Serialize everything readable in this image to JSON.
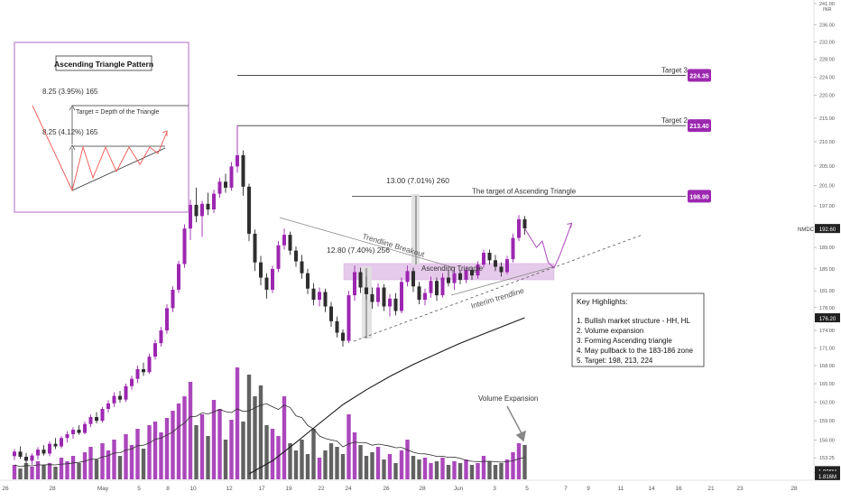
{
  "symbol": "NMDC",
  "currency": "INR",
  "colors": {
    "bull": "#9c27b0",
    "bear": "#2e2e2e",
    "target_label_bg": "#9c27b0",
    "zone": "#e1bee7",
    "price_tag": "#212121"
  },
  "price_tags": [
    {
      "value": "192.60",
      "role": "last-price",
      "price": 192.6
    },
    {
      "value": "176.20",
      "role": "moving-average",
      "price": 176.2
    },
    {
      "value": "1.906M",
      "role": "volume",
      "price": 151.3
    },
    {
      "value": "1.816M",
      "role": "volume-ma",
      "price": 150.55
    }
  ],
  "inset": {
    "title": "Ascending Triangle Pattern",
    "label_top": "8.25 (3.95%) 165",
    "label_mid": "8.25 (4.12%) 165",
    "target_note": "Target = Depth of the Triangle"
  },
  "targets": [
    {
      "name": "Target 3",
      "label": "224.35",
      "price": 224.35
    },
    {
      "name": "Target 2",
      "label": "213.40",
      "price": 213.4
    },
    {
      "name": "The target of Ascending Triangle",
      "label": "198.90",
      "price": 198.9
    }
  ],
  "annotations": {
    "measure_big": "13.00 (7.01%) 260",
    "measure_small": "12.80 (7.40%) 256",
    "trendline_breakout": "Trendline Breakout",
    "ascending_triangle": "Ascending Triangle",
    "interim_trendline": "Interim trendline",
    "volume_expansion": "Volume Expansion"
  },
  "key_highlights": {
    "title": "Key Highlights:",
    "items": [
      "1. Bullish market structure - HH, HL",
      "2. Volume expansion",
      "3. Forming Ascending triangle",
      "4. May pullback to the 183-186 zone",
      "5. Target: 198, 213, 224"
    ]
  },
  "chart_data": {
    "type": "candlestick",
    "y_axis": {
      "position": "right",
      "scale": "log",
      "ylim": [
        150.4,
        241.0
      ],
      "ticks": [
        241.0,
        236.0,
        232.0,
        228.0,
        224.0,
        220.0,
        215.0,
        210.0,
        205.0,
        201.0,
        197.0,
        193.0,
        189.0,
        185.0,
        181.0,
        178.0,
        174.0,
        171.0,
        168.0,
        165.0,
        162.0,
        159.0,
        156.0,
        153.25,
        151.0
      ]
    },
    "x_axis": {
      "labels": [
        "26",
        "28",
        "May",
        "5",
        "8",
        "10",
        "12",
        "17",
        "19",
        "22",
        "24",
        "26",
        "28",
        "Jun",
        "3",
        "5",
        "7",
        "9",
        "11",
        "14",
        "16",
        "21",
        "23",
        "28"
      ]
    },
    "grid": false,
    "candle_count": 88,
    "candles": [
      {
        "o": 153.5,
        "h": 154.6,
        "l": 152.9,
        "c": 154.2
      },
      {
        "o": 154.2,
        "h": 155.0,
        "l": 153.1,
        "c": 153.4
      },
      {
        "o": 153.4,
        "h": 154.0,
        "l": 152.4,
        "c": 152.8
      },
      {
        "o": 152.8,
        "h": 153.9,
        "l": 152.2,
        "c": 153.6
      },
      {
        "o": 153.6,
        "h": 154.9,
        "l": 153.0,
        "c": 154.5
      },
      {
        "o": 154.5,
        "h": 155.2,
        "l": 153.6,
        "c": 153.9
      },
      {
        "o": 153.9,
        "h": 155.8,
        "l": 153.5,
        "c": 155.4
      },
      {
        "o": 155.4,
        "h": 156.3,
        "l": 154.6,
        "c": 155.0
      },
      {
        "o": 155.0,
        "h": 156.6,
        "l": 154.7,
        "c": 156.3
      },
      {
        "o": 156.3,
        "h": 157.4,
        "l": 155.6,
        "c": 156.9
      },
      {
        "o": 156.9,
        "h": 158.0,
        "l": 156.2,
        "c": 157.6
      },
      {
        "o": 157.6,
        "h": 158.3,
        "l": 156.8,
        "c": 157.1
      },
      {
        "o": 157.1,
        "h": 158.9,
        "l": 156.9,
        "c": 158.5
      },
      {
        "o": 158.5,
        "h": 160.0,
        "l": 158.0,
        "c": 159.6
      },
      {
        "o": 159.6,
        "h": 160.4,
        "l": 158.6,
        "c": 159.0
      },
      {
        "o": 159.0,
        "h": 161.2,
        "l": 158.7,
        "c": 160.9
      },
      {
        "o": 160.9,
        "h": 162.3,
        "l": 160.3,
        "c": 161.8
      },
      {
        "o": 161.8,
        "h": 163.6,
        "l": 161.2,
        "c": 163.0
      },
      {
        "o": 163.0,
        "h": 163.8,
        "l": 161.9,
        "c": 162.4
      },
      {
        "o": 162.4,
        "h": 165.0,
        "l": 162.0,
        "c": 164.6
      },
      {
        "o": 164.6,
        "h": 166.3,
        "l": 164.0,
        "c": 165.8
      },
      {
        "o": 165.8,
        "h": 168.0,
        "l": 165.1,
        "c": 167.4
      },
      {
        "o": 167.4,
        "h": 168.5,
        "l": 166.3,
        "c": 166.9
      },
      {
        "o": 166.9,
        "h": 170.0,
        "l": 166.6,
        "c": 169.5
      },
      {
        "o": 169.5,
        "h": 172.4,
        "l": 169.0,
        "c": 171.8
      },
      {
        "o": 171.8,
        "h": 174.6,
        "l": 171.2,
        "c": 174.0
      },
      {
        "o": 174.0,
        "h": 178.6,
        "l": 173.4,
        "c": 177.9
      },
      {
        "o": 177.9,
        "h": 181.8,
        "l": 177.2,
        "c": 181.2
      },
      {
        "o": 181.2,
        "h": 186.5,
        "l": 180.6,
        "c": 185.9
      },
      {
        "o": 185.9,
        "h": 193.4,
        "l": 185.2,
        "c": 192.6
      },
      {
        "o": 192.6,
        "h": 198.2,
        "l": 190.4,
        "c": 197.2
      },
      {
        "o": 197.2,
        "h": 200.6,
        "l": 193.8,
        "c": 195.0
      },
      {
        "o": 195.0,
        "h": 198.0,
        "l": 191.0,
        "c": 197.4
      },
      {
        "o": 197.4,
        "h": 199.6,
        "l": 195.2,
        "c": 196.3
      },
      {
        "o": 196.3,
        "h": 200.2,
        "l": 195.6,
        "c": 199.4
      },
      {
        "o": 199.4,
        "h": 202.6,
        "l": 198.6,
        "c": 201.8
      },
      {
        "o": 201.8,
        "h": 203.4,
        "l": 199.6,
        "c": 200.6
      },
      {
        "o": 200.6,
        "h": 205.8,
        "l": 200.0,
        "c": 204.9
      },
      {
        "o": 204.9,
        "h": 213.4,
        "l": 203.6,
        "c": 207.2
      },
      {
        "o": 207.2,
        "h": 208.2,
        "l": 199.0,
        "c": 200.8
      },
      {
        "o": 200.8,
        "h": 201.4,
        "l": 190.2,
        "c": 191.6
      },
      {
        "o": 191.6,
        "h": 192.4,
        "l": 184.6,
        "c": 186.2
      },
      {
        "o": 186.2,
        "h": 187.4,
        "l": 182.0,
        "c": 183.4
      },
      {
        "o": 183.4,
        "h": 184.2,
        "l": 179.6,
        "c": 181.2
      },
      {
        "o": 181.2,
        "h": 185.6,
        "l": 180.6,
        "c": 185.0
      },
      {
        "o": 185.0,
        "h": 190.2,
        "l": 184.4,
        "c": 189.4
      },
      {
        "o": 189.4,
        "h": 192.6,
        "l": 188.6,
        "c": 191.4
      },
      {
        "o": 191.4,
        "h": 192.0,
        "l": 187.6,
        "c": 188.4
      },
      {
        "o": 188.4,
        "h": 189.2,
        "l": 185.4,
        "c": 186.4
      },
      {
        "o": 186.4,
        "h": 187.6,
        "l": 183.2,
        "c": 184.2
      },
      {
        "o": 184.2,
        "h": 185.0,
        "l": 180.4,
        "c": 181.4
      },
      {
        "o": 181.4,
        "h": 182.4,
        "l": 178.4,
        "c": 179.4
      },
      {
        "o": 179.4,
        "h": 181.6,
        "l": 178.2,
        "c": 180.8
      },
      {
        "o": 180.8,
        "h": 181.4,
        "l": 177.2,
        "c": 178.2
      },
      {
        "o": 178.2,
        "h": 179.0,
        "l": 174.6,
        "c": 175.6
      },
      {
        "o": 175.6,
        "h": 176.4,
        "l": 172.8,
        "c": 173.6
      },
      {
        "o": 173.6,
        "h": 174.2,
        "l": 171.2,
        "c": 172.2
      },
      {
        "o": 172.2,
        "h": 181.0,
        "l": 171.8,
        "c": 180.2
      },
      {
        "o": 180.2,
        "h": 185.6,
        "l": 179.2,
        "c": 184.4
      },
      {
        "o": 184.4,
        "h": 185.2,
        "l": 180.6,
        "c": 181.6
      },
      {
        "o": 181.6,
        "h": 183.6,
        "l": 179.4,
        "c": 180.4
      },
      {
        "o": 180.4,
        "h": 181.6,
        "l": 177.8,
        "c": 179.0
      },
      {
        "o": 179.0,
        "h": 182.4,
        "l": 178.2,
        "c": 181.6
      },
      {
        "o": 181.6,
        "h": 182.2,
        "l": 177.4,
        "c": 178.2
      },
      {
        "o": 178.2,
        "h": 180.4,
        "l": 176.4,
        "c": 179.6
      },
      {
        "o": 179.6,
        "h": 180.6,
        "l": 176.6,
        "c": 177.4
      },
      {
        "o": 177.4,
        "h": 183.4,
        "l": 177.0,
        "c": 182.6
      },
      {
        "o": 182.6,
        "h": 185.6,
        "l": 181.8,
        "c": 184.6
      },
      {
        "o": 184.6,
        "h": 185.2,
        "l": 180.8,
        "c": 181.8
      },
      {
        "o": 181.8,
        "h": 182.6,
        "l": 178.6,
        "c": 179.4
      },
      {
        "o": 179.4,
        "h": 181.4,
        "l": 178.4,
        "c": 180.6
      },
      {
        "o": 180.6,
        "h": 183.6,
        "l": 179.8,
        "c": 182.8
      },
      {
        "o": 182.8,
        "h": 183.4,
        "l": 179.2,
        "c": 180.2
      },
      {
        "o": 180.2,
        "h": 184.2,
        "l": 179.8,
        "c": 183.4
      },
      {
        "o": 183.4,
        "h": 184.8,
        "l": 181.8,
        "c": 182.4
      },
      {
        "o": 182.4,
        "h": 185.0,
        "l": 181.2,
        "c": 184.2
      },
      {
        "o": 184.2,
        "h": 184.8,
        "l": 182.2,
        "c": 183.0
      },
      {
        "o": 183.0,
        "h": 185.4,
        "l": 182.4,
        "c": 184.8
      },
      {
        "o": 184.8,
        "h": 185.2,
        "l": 183.0,
        "c": 183.8
      },
      {
        "o": 183.8,
        "h": 186.4,
        "l": 183.2,
        "c": 185.8
      },
      {
        "o": 185.8,
        "h": 188.6,
        "l": 185.2,
        "c": 188.0
      },
      {
        "o": 188.0,
        "h": 188.6,
        "l": 185.8,
        "c": 186.6
      },
      {
        "o": 186.6,
        "h": 187.6,
        "l": 184.6,
        "c": 185.4
      },
      {
        "o": 185.4,
        "h": 186.2,
        "l": 183.6,
        "c": 184.4
      },
      {
        "o": 184.4,
        "h": 187.4,
        "l": 184.0,
        "c": 186.8
      },
      {
        "o": 186.8,
        "h": 191.6,
        "l": 186.2,
        "c": 190.8
      },
      {
        "o": 190.8,
        "h": 195.2,
        "l": 190.2,
        "c": 194.4
      },
      {
        "o": 194.4,
        "h": 195.0,
        "l": 191.4,
        "c": 192.6
      }
    ],
    "volume": [
      0.8,
      0.6,
      0.9,
      0.7,
      1.0,
      0.8,
      0.9,
      0.7,
      1.2,
      1.0,
      1.3,
      0.9,
      1.5,
      1.8,
      1.1,
      2.0,
      1.6,
      2.2,
      1.3,
      2.5,
      1.9,
      2.8,
      1.7,
      3.0,
      3.2,
      2.6,
      3.4,
      3.8,
      4.2,
      4.6,
      5.4,
      3.0,
      3.6,
      2.4,
      4.4,
      3.9,
      2.2,
      3.3,
      6.2,
      3.2,
      5.8,
      4.6,
      5.2,
      3.0,
      2.8,
      2.4,
      4.6,
      2.0,
      1.6,
      2.2,
      1.4,
      2.8,
      1.2,
      1.6,
      2.0,
      1.8,
      1.4,
      3.6,
      2.6,
      1.9,
      1.3,
      1.5,
      1.8,
      1.1,
      1.4,
      0.9,
      1.6,
      2.2,
      1.3,
      1.1,
      1.2,
      0.9,
      1.0,
      1.2,
      0.8,
      1.0,
      0.9,
      1.1,
      0.8,
      0.9,
      1.3,
      1.0,
      0.8,
      0.9,
      1.1,
      1.5,
      2.0,
      1.906
    ],
    "moving_average": [
      {
        "i": 40,
        "v": 150.8
      },
      {
        "i": 44,
        "v": 152.8
      },
      {
        "i": 48,
        "v": 155.6
      },
      {
        "i": 52,
        "v": 158.6
      },
      {
        "i": 56,
        "v": 161.6
      },
      {
        "i": 60,
        "v": 164.0
      },
      {
        "i": 64,
        "v": 166.2
      },
      {
        "i": 68,
        "v": 168.2
      },
      {
        "i": 72,
        "v": 170.0
      },
      {
        "i": 76,
        "v": 171.8
      },
      {
        "i": 80,
        "v": 173.4
      },
      {
        "i": 84,
        "v": 175.0
      },
      {
        "i": 87,
        "v": 176.2
      }
    ],
    "projection": [
      {
        "i": 87,
        "v": 192.6
      },
      {
        "i": 89,
        "v": 189.0
      },
      {
        "i": 90,
        "v": 190.2
      },
      {
        "i": 91,
        "v": 186.2
      },
      {
        "i": 92,
        "v": 185.2
      },
      {
        "i": 93,
        "v": 187.6
      },
      {
        "i": 95,
        "v": 193.6
      }
    ],
    "demand_zone": [
      183,
      186
    ]
  }
}
